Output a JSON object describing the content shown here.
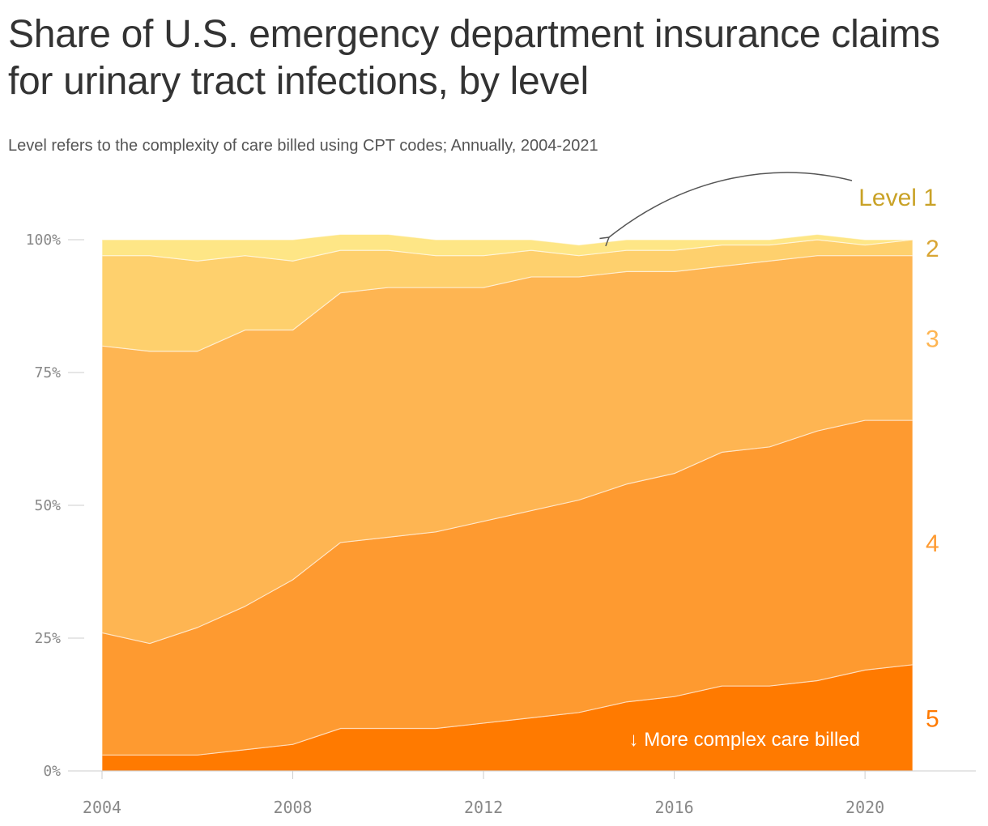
{
  "chart_data": {
    "type": "area",
    "stacked": true,
    "title": "Share of U.S. emergency department insurance claims for urinary tract infections, by level",
    "subtitle": "Level refers to the complexity of care billed using CPT codes; Annually, 2004-2021",
    "x": [
      2004,
      2005,
      2006,
      2007,
      2008,
      2009,
      2010,
      2011,
      2012,
      2013,
      2014,
      2015,
      2016,
      2017,
      2018,
      2019,
      2020,
      2021
    ],
    "x_ticks": [
      2004,
      2008,
      2012,
      2016,
      2020
    ],
    "x_tick_labels": [
      "2004",
      "2008",
      "2012",
      "2016",
      "2020"
    ],
    "y_ticks": [
      0,
      25,
      50,
      75,
      100
    ],
    "y_tick_labels": [
      "0%",
      "25%",
      "50%",
      "75%",
      "100%"
    ],
    "ylim": [
      0,
      100
    ],
    "series": [
      {
        "name": "5",
        "color": "#ff7a00",
        "values": [
          3,
          3,
          3,
          4,
          5,
          8,
          8,
          8,
          9,
          10,
          11,
          13,
          14,
          16,
          16,
          17,
          19,
          20
        ]
      },
      {
        "name": "4",
        "color": "#fe9a30",
        "values": [
          23,
          21,
          24,
          27,
          31,
          35,
          36,
          37,
          38,
          39,
          40,
          41,
          42,
          44,
          45,
          47,
          47,
          46
        ]
      },
      {
        "name": "3",
        "color": "#feb552",
        "values": [
          54,
          55,
          52,
          52,
          47,
          47,
          47,
          46,
          44,
          44,
          42,
          40,
          38,
          35,
          35,
          33,
          31,
          31
        ]
      },
      {
        "name": "2",
        "color": "#fed06d",
        "values": [
          17,
          18,
          17,
          14,
          13,
          8,
          7,
          6,
          6,
          5,
          4,
          4,
          4,
          4,
          3,
          3,
          2,
          3
        ]
      },
      {
        "name": "Level 1",
        "color": "#fee686",
        "values": [
          3,
          3,
          4,
          3,
          4,
          3,
          3,
          3,
          3,
          2,
          2,
          2,
          2,
          1,
          1,
          1,
          1,
          0
        ]
      }
    ],
    "series_label_colors": [
      "#ff7a00",
      "#fe9a30",
      "#feb552",
      "#d9a534",
      "#c9a227"
    ],
    "annotation": "↓ More complex care billed",
    "grid": false
  }
}
